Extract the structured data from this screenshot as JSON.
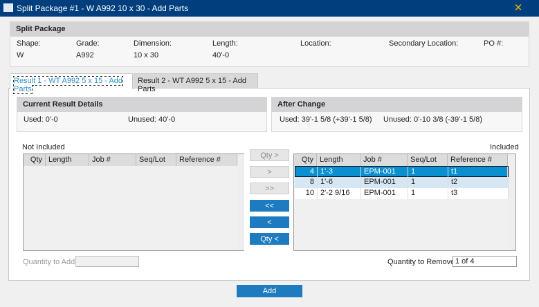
{
  "window": {
    "title": "Split Package #1 - W A992 10 x 30 - Add Parts",
    "close_icon": "close-icon"
  },
  "split_package": {
    "header": "Split Package",
    "fields": [
      {
        "label": "Shape:",
        "value": "W"
      },
      {
        "label": "Grade:",
        "value": "A992"
      },
      {
        "label": "Dimension:",
        "value": "10 x 30"
      },
      {
        "label": "Length:",
        "value": "40'-0"
      },
      {
        "label": "Location:",
        "value": ""
      },
      {
        "label": "Secondary Location:",
        "value": ""
      },
      {
        "label": "PO #:",
        "value": ""
      }
    ]
  },
  "tabs": [
    {
      "label": "Result 1 - WT A992 5 x 15 - Add Parts",
      "active": true
    },
    {
      "label": "Result 2 - WT A992 5 x 15 - Add Parts",
      "active": false
    }
  ],
  "current": {
    "header": "Current Result Details",
    "used": "Used:  0'-0",
    "unused": "Unused:  40'-0"
  },
  "after": {
    "header": "After Change",
    "used": "Used:  39'-1 5/8 (+39'-1 5/8)",
    "unused": "Unused:  0'-10 3/8 (-39'-1 5/8)"
  },
  "not_included": {
    "label": "Not Included",
    "columns": [
      "Qty",
      "Length",
      "Job #",
      "Seq/Lot",
      "Reference #"
    ],
    "rows": []
  },
  "included": {
    "label": "Included",
    "columns": [
      "Qty",
      "Length",
      "Job #",
      "Seq/Lot",
      "Reference #"
    ],
    "rows": [
      [
        "4",
        "1'-3",
        "EPM-001",
        "1",
        "t1"
      ],
      [
        "8",
        "1'-6",
        "EPM-001",
        "1",
        "t2"
      ],
      [
        "10",
        "2'-2 9/16",
        "EPM-001",
        "1",
        "t3"
      ]
    ]
  },
  "buttons": {
    "qty_add": "Qty >",
    "add_one": ">",
    "add_all": ">>",
    "remove_all": "<<",
    "remove_one": "<",
    "qty_remove": "Qty <",
    "add": "Add"
  },
  "quantity_to_add": {
    "label": "Quantity to Add:",
    "value": ""
  },
  "quantity_to_remove": {
    "label": "Quantity to Remove:",
    "value": "1 of 4"
  },
  "colors": {
    "titlebar": "#003e7e",
    "accent": "#1e7bc0",
    "selected_row": "#0a8fd0"
  }
}
